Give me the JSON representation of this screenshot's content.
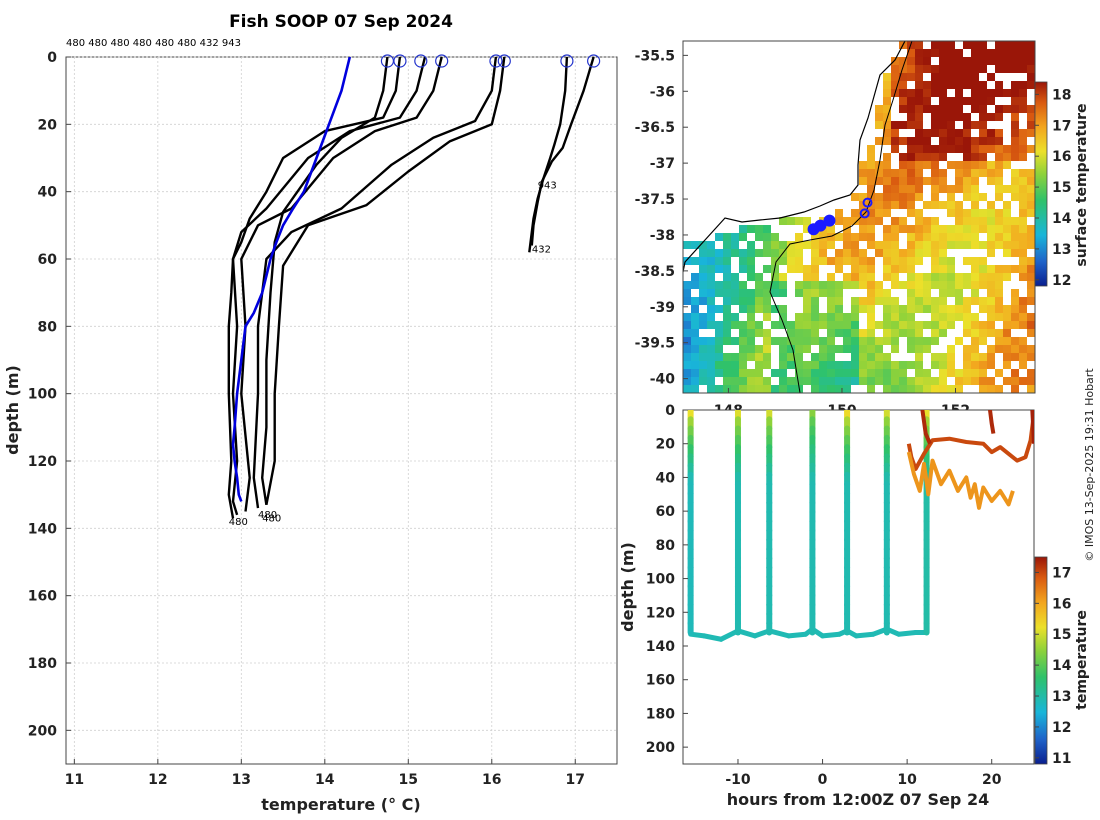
{
  "title": "Fish SOOP 07 Sep 2024",
  "profile_ids_line": "480 480 480 480 480 480 432 943",
  "credit": "© IMOS 13-Sep-2025 19:31 Hobart",
  "chart_data": [
    {
      "id": "profiles",
      "type": "line",
      "xlabel": "temperature (° C)",
      "ylabel": "depth (m)",
      "xlim": [
        10.9,
        17.5
      ],
      "ylim": [
        210,
        0
      ],
      "xticks": [
        11,
        12,
        13,
        14,
        15,
        16,
        17
      ],
      "yticks": [
        0,
        20,
        40,
        60,
        80,
        100,
        120,
        140,
        160,
        180,
        200
      ],
      "grid": true,
      "surface_markers_x": [
        14.75,
        14.9,
        15.15,
        15.4,
        16.05,
        16.15,
        16.9,
        17.22
      ],
      "annotations": [
        {
          "text": "943",
          "x": 16.55,
          "y": 39
        },
        {
          "text": "432",
          "x": 16.48,
          "y": 58
        },
        {
          "text": "480",
          "x": 12.85,
          "y": 139
        },
        {
          "text": "480",
          "x": 13.25,
          "y": 138
        },
        {
          "text": "480",
          "x": 13.2,
          "y": 137
        }
      ],
      "series": [
        {
          "color": "#0000dd",
          "x": [
            14.3,
            14.2,
            14.05,
            13.9,
            13.75,
            13.62,
            13.5,
            13.42,
            13.35,
            13.3,
            13.25,
            13.15,
            13.05,
            13.0,
            12.95,
            12.92,
            12.9,
            12.92,
            12.95,
            12.97,
            13.0
          ],
          "y": [
            0,
            10,
            20,
            30,
            40,
            45,
            50,
            55,
            60,
            65,
            70,
            76,
            80,
            90,
            100,
            110,
            115,
            120,
            125,
            130,
            132
          ]
        },
        {
          "color": "#000000",
          "x": [
            14.9,
            14.85,
            14.7,
            14.0,
            13.5,
            13.3,
            13.1,
            13.0,
            12.9,
            12.88,
            12.85,
            12.85,
            12.88,
            12.85,
            12.9
          ],
          "y": [
            0,
            10,
            18,
            22,
            30,
            40,
            48,
            55,
            60,
            70,
            80,
            100,
            120,
            130,
            137
          ]
        },
        {
          "color": "#000000",
          "x": [
            15.2,
            15.1,
            14.9,
            14.3,
            13.8,
            13.3,
            13.0,
            12.9,
            12.95,
            12.9,
            12.95,
            12.9,
            12.95
          ],
          "y": [
            0,
            10,
            18,
            22,
            30,
            45,
            52,
            60,
            80,
            100,
            120,
            132,
            136
          ]
        },
        {
          "color": "#000000",
          "x": [
            15.4,
            15.3,
            15.1,
            14.6,
            14.1,
            13.6,
            13.2,
            13.0,
            13.05,
            13.0,
            13.1,
            13.05
          ],
          "y": [
            0,
            10,
            18,
            22,
            30,
            45,
            50,
            60,
            80,
            100,
            125,
            135
          ]
        },
        {
          "color": "#000000",
          "x": [
            14.75,
            14.7,
            14.6,
            14.2,
            13.9,
            13.5,
            13.4,
            13.35,
            13.3,
            13.3,
            13.25,
            13.3
          ],
          "y": [
            0,
            10,
            18,
            24,
            32,
            46,
            55,
            70,
            90,
            110,
            125,
            133
          ]
        },
        {
          "color": "#000000",
          "x": [
            16.05,
            16.0,
            15.8,
            15.3,
            14.8,
            14.2,
            13.6,
            13.3,
            13.2,
            13.2,
            13.15,
            13.2
          ],
          "y": [
            0,
            10,
            19,
            24,
            32,
            45,
            52,
            60,
            80,
            100,
            125,
            134
          ]
        },
        {
          "color": "#000000",
          "x": [
            16.15,
            16.1,
            16.0,
            15.5,
            15.0,
            14.5,
            13.8,
            13.5,
            13.45,
            13.4,
            13.4,
            13.3
          ],
          "y": [
            0,
            10,
            20,
            25,
            34,
            44,
            50,
            62,
            80,
            100,
            120,
            133
          ]
        },
        {
          "color": "#000000",
          "x": [
            16.9,
            16.88,
            16.82,
            16.75,
            16.7,
            16.62,
            16.55,
            16.5,
            16.48,
            16.45
          ],
          "y": [
            0,
            10,
            20,
            26,
            30,
            36,
            42,
            48,
            52,
            58
          ]
        },
        {
          "color": "#000000",
          "x": [
            17.22,
            17.1,
            16.95,
            16.85,
            16.72,
            16.6,
            16.55,
            16.5,
            16.48
          ],
          "y": [
            0,
            10,
            20,
            27,
            31,
            37,
            43,
            50,
            56
          ]
        }
      ]
    },
    {
      "id": "sst-map",
      "type": "heatmap",
      "colorbar_label": "surface temperature",
      "colorbar_ticks": [
        12,
        13,
        14,
        15,
        16,
        17,
        18
      ],
      "color_range": [
        11.8,
        18.4
      ],
      "ylim": [
        -40.2,
        -35.3
      ],
      "yticks": [
        -35.5,
        -36,
        -36.5,
        -37,
        -37.5,
        -38,
        -38.5,
        -39,
        -39.5,
        -40
      ],
      "xticks_visible": [
        "148",
        "150",
        "152"
      ],
      "xlim": [
        147.2,
        153.4
      ],
      "stations": [
        {
          "lon": 149.5,
          "lat": -37.92,
          "filled": true
        },
        {
          "lon": 149.62,
          "lat": -37.87,
          "filled": true
        },
        {
          "lon": 149.78,
          "lat": -37.8,
          "filled": true
        },
        {
          "lon": 150.45,
          "lat": -37.55,
          "filled": false
        },
        {
          "lon": 150.4,
          "lat": -37.7,
          "filled": false
        }
      ]
    },
    {
      "id": "time-depth",
      "type": "scatter",
      "xlabel": "hours from 12:00Z 07 Sep 24",
      "ylabel": "depth (m)",
      "colorbar_label": "temperature",
      "colorbar_ticks": [
        11,
        12,
        13,
        14,
        15,
        16,
        17
      ],
      "color_range": [
        10.8,
        17.5
      ],
      "xlim": [
        -16.5,
        25
      ],
      "ylim": [
        210,
        0
      ],
      "xticks": [
        -10,
        0,
        10,
        20
      ],
      "yticks": [
        0,
        20,
        40,
        60,
        80,
        100,
        120,
        140,
        160,
        180,
        200
      ],
      "profiles": [
        {
          "x": -15.6,
          "surface_temp": 15.2,
          "deep_temp": 12.8
        },
        {
          "x": -10.0,
          "surface_temp": 15.1,
          "deep_temp": 12.9
        },
        {
          "x": -6.3,
          "surface_temp": 15.0,
          "deep_temp": 12.9
        },
        {
          "x": -1.2,
          "surface_temp": 14.4,
          "deep_temp": 12.9
        },
        {
          "x": 2.9,
          "surface_temp": 15.3,
          "deep_temp": 12.9
        },
        {
          "x": 7.6,
          "surface_temp": 15.0,
          "deep_temp": 12.9
        },
        {
          "x": 12.3,
          "surface_temp": 15.2,
          "deep_temp": 13.0
        }
      ],
      "bottom_track": [
        [
          -15.6,
          133
        ],
        [
          -14,
          134
        ],
        [
          -12,
          136
        ],
        [
          -10,
          131
        ],
        [
          -8,
          134
        ],
        [
          -6.3,
          131
        ],
        [
          -4,
          134
        ],
        [
          -2,
          133
        ],
        [
          -1.2,
          130
        ],
        [
          0,
          134
        ],
        [
          2,
          133
        ],
        [
          2.9,
          131
        ],
        [
          4,
          134
        ],
        [
          6,
          133
        ],
        [
          7.6,
          130
        ],
        [
          9,
          133
        ],
        [
          11,
          132
        ],
        [
          12.3,
          132
        ]
      ],
      "warm_traces": [
        {
          "temp": 17.0,
          "x": [
            10.2,
            10.5,
            11,
            12,
            13,
            15,
            17,
            19,
            20,
            21,
            22,
            23,
            24,
            24.6,
            25
          ],
          "y": [
            20,
            28,
            35,
            26,
            18,
            17,
            19,
            20,
            25,
            22,
            26,
            30,
            28,
            18,
            2
          ]
        },
        {
          "temp": 16.2,
          "x": [
            10.2,
            10.8,
            11.5,
            12,
            12.5,
            13,
            14,
            15,
            16,
            17,
            17.5,
            18,
            18.5,
            19,
            20,
            21,
            22,
            22.5
          ],
          "y": [
            25,
            38,
            48,
            32,
            50,
            30,
            44,
            36,
            48,
            40,
            52,
            44,
            58,
            46,
            54,
            48,
            56,
            48
          ]
        },
        {
          "temp": 17.3,
          "x": [
            11.8,
            12.2,
            12.7
          ],
          "y": [
            0,
            14,
            20
          ]
        },
        {
          "temp": 17.3,
          "x": [
            19.8,
            20.0,
            20.2
          ],
          "y": [
            0,
            8,
            14
          ]
        },
        {
          "temp": 17.4,
          "x": [
            24.8,
            24.9,
            25.0
          ],
          "y": [
            0,
            10,
            20
          ]
        }
      ]
    }
  ]
}
